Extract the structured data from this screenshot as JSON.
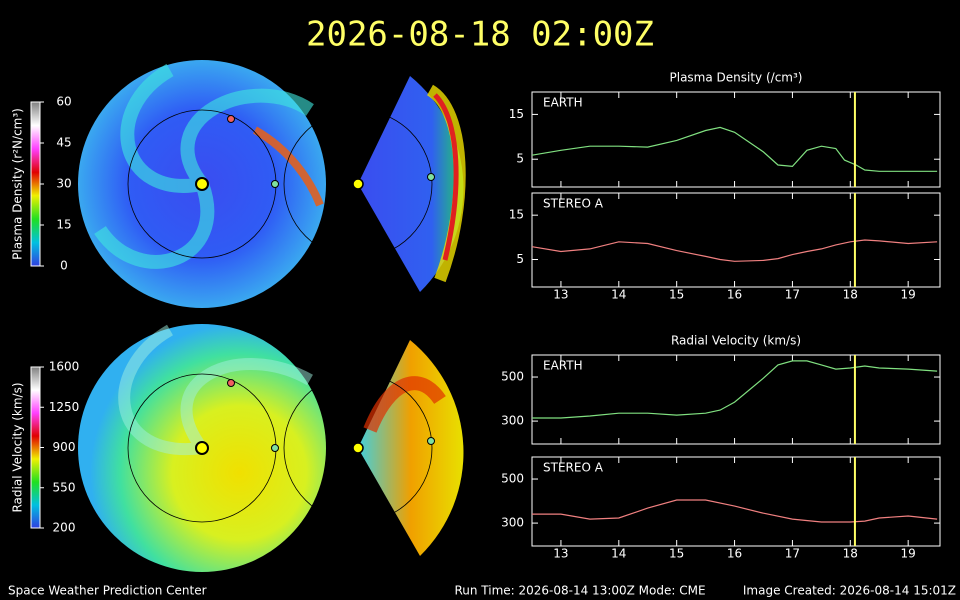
{
  "title": "2026-08-18  02:00Z",
  "footer": {
    "left": "Space Weather Prediction Center",
    "center": "Run Time: 2026-08-14 13:00Z  Mode: CME",
    "right": "Image Created: 2026-08-14 15:01Z"
  },
  "chart_data": [
    {
      "type": "line",
      "title": "Plasma Density (/cm³)",
      "label": "EARTH",
      "color": "#80e080",
      "x": [
        12.5,
        13,
        13.5,
        14,
        14.5,
        15,
        15.5,
        15.75,
        16,
        16.5,
        16.75,
        17,
        17.25,
        17.5,
        17.75,
        17.9,
        18.1,
        18.25,
        18.5,
        19,
        19.5
      ],
      "values": [
        5.9,
        7,
        7.9,
        7.9,
        7.7,
        9.2,
        11.4,
        12.1,
        11,
        6.6,
        3.7,
        3.4,
        7,
        7.9,
        7.4,
        4.8,
        3.7,
        2.6,
        2.3,
        2.3,
        2.3
      ],
      "xlim": [
        12.5,
        19.55
      ],
      "ylim": [
        -1.2,
        20
      ],
      "xticks": [
        13,
        14,
        15,
        16,
        17,
        18,
        19
      ],
      "yticks": [
        5,
        15
      ],
      "marker_x": 18.08
    },
    {
      "type": "line",
      "label": "STEREO A",
      "color": "#f08080",
      "x": [
        12.5,
        13,
        13.5,
        14,
        14.5,
        15,
        15.5,
        15.75,
        16,
        16.5,
        16.75,
        17,
        17.25,
        17.5,
        17.75,
        18,
        18.25,
        18.5,
        19,
        19.5
      ],
      "values": [
        7.9,
        6.8,
        7.4,
        9,
        8.6,
        7,
        5.7,
        5,
        4.6,
        4.8,
        5.2,
        6.1,
        6.8,
        7.4,
        8.3,
        9,
        9.4,
        9.2,
        8.6,
        9
      ],
      "xlim": [
        12.5,
        19.55
      ],
      "ylim": [
        -1.2,
        20
      ],
      "xticks": [
        13,
        14,
        15,
        16,
        17,
        18,
        19
      ],
      "yticks": [
        5,
        15
      ],
      "marker_x": 18.08
    },
    {
      "type": "line",
      "title": "Radial Velocity (km/s)",
      "label": "EARTH",
      "color": "#80e080",
      "x": [
        12.5,
        13,
        13.5,
        14,
        14.5,
        15,
        15.5,
        15.75,
        16,
        16.5,
        16.75,
        17,
        17.25,
        17.5,
        17.75,
        18,
        18.25,
        18.5,
        19,
        19.5
      ],
      "values": [
        314,
        314,
        323,
        336,
        336,
        327,
        336,
        350,
        386,
        495,
        555,
        573,
        573,
        555,
        536,
        541,
        550,
        541,
        536,
        527
      ],
      "xlim": [
        12.5,
        19.55
      ],
      "ylim": [
        196,
        600
      ],
      "xticks": [
        13,
        14,
        15,
        16,
        17,
        18,
        19
      ],
      "yticks": [
        300,
        500
      ],
      "marker_x": 18.08
    },
    {
      "type": "line",
      "label": "STEREO A",
      "color": "#f08080",
      "x": [
        12.5,
        13,
        13.5,
        14,
        14.5,
        15,
        15.5,
        16,
        16.5,
        17,
        17.5,
        18,
        18.25,
        18.5,
        19,
        19.5
      ],
      "values": [
        341,
        341,
        318,
        323,
        368,
        405,
        405,
        377,
        345,
        318,
        305,
        305,
        309,
        323,
        332,
        318
      ],
      "xlim": [
        12.5,
        19.55
      ],
      "ylim": [
        196,
        600
      ],
      "xticks": [
        13,
        14,
        15,
        16,
        17,
        18,
        19
      ],
      "yticks": [
        300,
        500
      ],
      "marker_x": 18.08
    },
    {
      "type": "colorbar",
      "label": "Plasma Density (r²N/cm³)",
      "ylim": [
        0,
        60
      ],
      "yticks": [
        0,
        15,
        30,
        45,
        60
      ],
      "colors": [
        "#3040e0",
        "#00c0e0",
        "#20e020",
        "#f0f000",
        "#e00000",
        "#ff40ff",
        "#ffffff",
        "#808080"
      ]
    },
    {
      "type": "colorbar",
      "label": "Radial Velocity (km/s)",
      "ylim": [
        200,
        1600
      ],
      "yticks": [
        200,
        550,
        900,
        1250,
        1600
      ],
      "colors": [
        "#3040e0",
        "#00c0e0",
        "#20e020",
        "#f0f000",
        "#e00000",
        "#ff40ff",
        "#ffffff",
        "#808080"
      ]
    }
  ]
}
